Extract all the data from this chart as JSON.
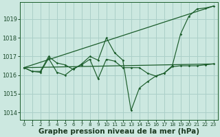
{
  "background_color": "#cce8e0",
  "grid_color": "#aacfc8",
  "line_color": "#1a5c2a",
  "xlabel": "Graphe pression niveau de la mer (hPa)",
  "xlabel_fontsize": 7.5,
  "tick_fontsize": 6,
  "xlim": [
    -0.5,
    23.5
  ],
  "ylim": [
    1013.6,
    1019.9
  ],
  "yticks": [
    1014,
    1015,
    1016,
    1017,
    1018,
    1019
  ],
  "xticks": [
    0,
    1,
    2,
    3,
    4,
    5,
    6,
    7,
    8,
    9,
    10,
    11,
    12,
    13,
    14,
    15,
    16,
    17,
    18,
    19,
    20,
    21,
    22,
    23
  ],
  "series1_x": [
    0,
    1,
    2,
    3,
    4,
    5,
    6,
    7,
    8,
    9,
    10,
    11,
    12,
    13,
    14,
    15,
    16,
    17,
    18,
    19,
    20,
    21,
    22,
    23
  ],
  "series1_y": [
    1016.4,
    1016.2,
    1016.2,
    1017.0,
    1016.65,
    1016.55,
    1016.3,
    1016.6,
    1017.0,
    1016.8,
    1018.0,
    1017.2,
    1016.8,
    1014.1,
    1015.3,
    1015.65,
    1015.95,
    1016.1,
    1016.5,
    1018.2,
    1019.15,
    1019.55,
    1019.6,
    1019.7
  ],
  "series2_x": [
    0,
    1,
    2,
    3,
    4,
    5,
    6,
    7,
    8,
    9,
    10,
    11,
    12,
    13,
    14,
    15,
    16,
    17,
    18,
    19,
    20,
    21,
    22,
    23
  ],
  "series2_y": [
    1016.4,
    1016.2,
    1016.15,
    1016.9,
    1016.15,
    1016.0,
    1016.35,
    1016.55,
    1016.85,
    1015.8,
    1016.85,
    1016.75,
    1016.4,
    1016.4,
    1016.4,
    1016.1,
    1015.95,
    1016.1,
    1016.45,
    1016.5,
    1016.5,
    1016.5,
    1016.55,
    1016.6
  ],
  "trend1_x": [
    0,
    23
  ],
  "trend1_y": [
    1016.4,
    1019.7
  ],
  "trend2_x": [
    0,
    23
  ],
  "trend2_y": [
    1016.4,
    1016.6
  ]
}
